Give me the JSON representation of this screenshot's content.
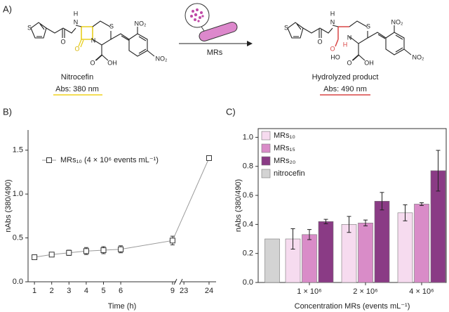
{
  "scheme": {
    "panel": "A)",
    "reactant": {
      "name": "Nitrocefin",
      "abs": "Abs: 380 nm",
      "atoms": [
        "S",
        "O",
        "H",
        "N",
        "N",
        "S",
        "O",
        "O",
        "OH",
        "NO₂",
        "NO₂"
      ]
    },
    "reagent": "MRs",
    "product": {
      "name": "Hydrolyzed product",
      "abs": "Abs: 490 nm",
      "atoms": [
        "S",
        "O",
        "H",
        "N",
        "H",
        "N",
        "S",
        "O",
        "HO",
        "O",
        "OH",
        "NO₂",
        "NO₂"
      ]
    }
  },
  "chart_data": [
    {
      "type": "line",
      "panel": "B)",
      "x_label": "Time (h)",
      "y_label": "nAbs (380/490)",
      "x": [
        1,
        2,
        3,
        4,
        5,
        6,
        9,
        24
      ],
      "series": [
        {
          "name": "MRs₁₀ (4 × 10⁶ events mL⁻¹)",
          "color": "#999999",
          "values": [
            0.28,
            0.31,
            0.33,
            0.35,
            0.36,
            0.37,
            0.47,
            1.41
          ],
          "errors": [
            0.02,
            0.02,
            0.03,
            0.04,
            0.04,
            0.04,
            0.05,
            0.02
          ]
        }
      ],
      "xlim": [
        0.63,
        24.28
      ],
      "x_break": [
        9.37,
        22.8
      ],
      "xticks": [
        1,
        2,
        3,
        4,
        5,
        6,
        9,
        23,
        24
      ],
      "ylim": [
        0,
        1.73
      ],
      "yticks": [
        {
          "value": 0,
          "label": "0.0"
        },
        {
          "value": 0.5,
          "label": "0.5"
        },
        {
          "value": 1,
          "label": "1.0"
        },
        {
          "value": 1.5,
          "label": "1.5"
        }
      ],
      "legend": "top-left"
    },
    {
      "type": "bar",
      "panel": "C)",
      "x_label": "Concentration MRs (events mL⁻¹)",
      "y_label": "nAbs (380/490)",
      "categories": [
        null,
        "1 × 10⁶",
        "2 × 10⁶",
        "4 × 10⁶"
      ],
      "series": [
        {
          "name": "MRs₁₀",
          "color": "#f6dbef",
          "values": [
            null,
            0.3,
            0.4,
            0.48
          ],
          "errors": [
            null,
            0.07,
            0.055,
            0.055
          ]
        },
        {
          "name": "MRs₁₅",
          "color": "#d98cc8",
          "values": [
            null,
            0.33,
            0.41,
            0.54
          ],
          "errors": [
            null,
            0.035,
            0.02,
            0.01
          ]
        },
        {
          "name": "MRs₂₀",
          "color": "#8a3b85",
          "values": [
            null,
            0.42,
            0.56,
            0.77
          ],
          "errors": [
            null,
            0.015,
            0.06,
            0.14
          ]
        },
        {
          "name": "nitrocefin",
          "color": "#d3d3d3",
          "values": [
            0.3,
            null,
            null,
            null
          ]
        }
      ],
      "ylim": [
        0,
        1.06
      ],
      "yticks": [
        {
          "value": 0,
          "label": "0.0"
        },
        {
          "value": 0.2,
          "label": "0.2"
        },
        {
          "value": 0.4,
          "label": "0.4"
        },
        {
          "value": 0.6,
          "label": "0.6"
        },
        {
          "value": 0.8,
          "label": "0.8"
        },
        {
          "value": 1,
          "label": "1.0"
        }
      ],
      "legend": "top-left"
    }
  ]
}
